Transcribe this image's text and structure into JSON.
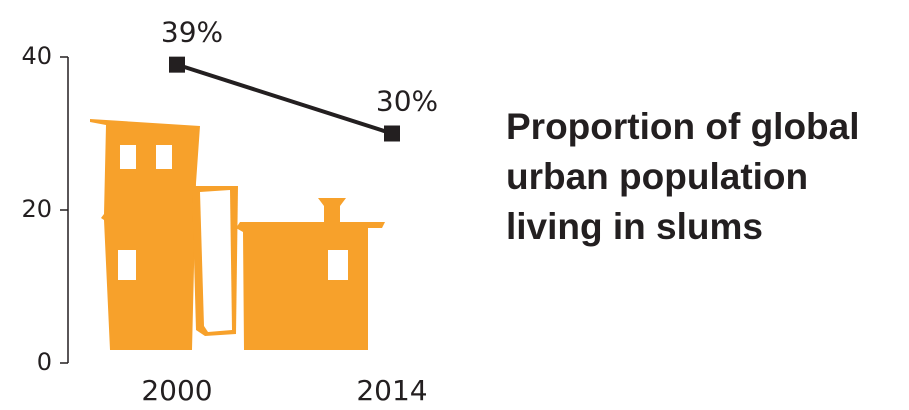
{
  "chart_data": {
    "type": "line",
    "title": "Proportion of global urban population living in slums",
    "categories": [
      "2000",
      "2014"
    ],
    "values": [
      39,
      30
    ],
    "value_labels": [
      "39%",
      "30%"
    ],
    "color": "#231f20",
    "ylim": [
      0,
      40
    ],
    "yticks": [
      0,
      20,
      40
    ]
  }
}
